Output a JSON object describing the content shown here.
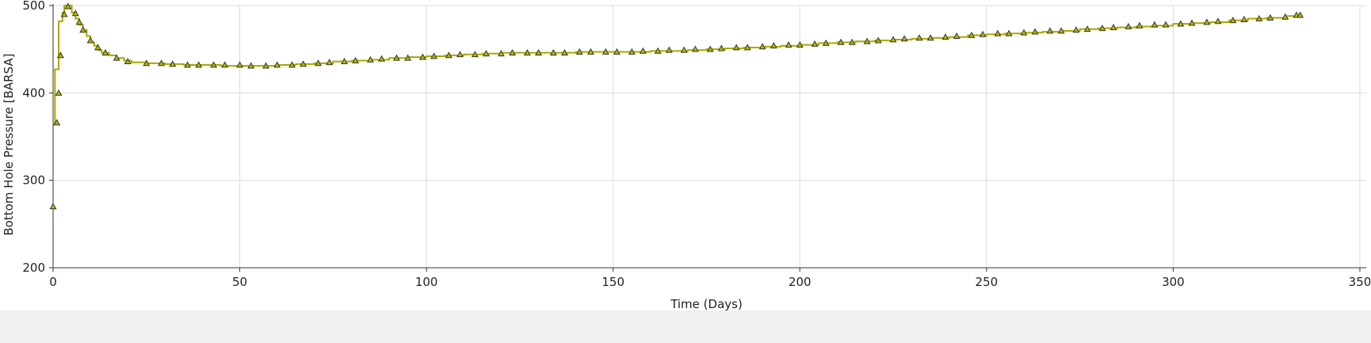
{
  "chart_data": {
    "type": "line",
    "xlabel": "Time (Days)",
    "ylabel": "Bottom Hole Pressure [BARSA]",
    "xlim": [
      0,
      350
    ],
    "ylim": [
      200,
      500
    ],
    "x_ticks": [
      0,
      50,
      100,
      150,
      200,
      250,
      300,
      350
    ],
    "y_ticks": [
      200,
      300,
      400,
      500
    ],
    "grid": true,
    "colors": {
      "line": "#a8a800",
      "marker_fill": "#b8b800",
      "marker_stroke": "#333333"
    },
    "series": [
      {
        "kind": "step-line",
        "points": [
          [
            0,
            365
          ],
          [
            0.5,
            427
          ],
          [
            1,
            427
          ],
          [
            1.5,
            482
          ],
          [
            2,
            482
          ],
          [
            2.5,
            492
          ],
          [
            3,
            500
          ],
          [
            4.5,
            500
          ],
          [
            5,
            492
          ],
          [
            6,
            485
          ],
          [
            7,
            478
          ],
          [
            8,
            472
          ],
          [
            9,
            465
          ],
          [
            10,
            458
          ],
          [
            11,
            454
          ],
          [
            12,
            449
          ],
          [
            13,
            446
          ],
          [
            15,
            443
          ],
          [
            17,
            440
          ],
          [
            19,
            437
          ],
          [
            21,
            435
          ],
          [
            25,
            434
          ],
          [
            30,
            433
          ],
          [
            35,
            432
          ],
          [
            40,
            432
          ],
          [
            45,
            431
          ],
          [
            50,
            431
          ],
          [
            55,
            431
          ],
          [
            60,
            432
          ],
          [
            65,
            433
          ],
          [
            70,
            434
          ],
          [
            75,
            436
          ],
          [
            80,
            437
          ],
          [
            85,
            438
          ],
          [
            90,
            440
          ],
          [
            95,
            441
          ],
          [
            100,
            442
          ],
          [
            105,
            443
          ],
          [
            110,
            444
          ],
          [
            115,
            445
          ],
          [
            120,
            446
          ],
          [
            125,
            446
          ],
          [
            130,
            446
          ],
          [
            135,
            446
          ],
          [
            140,
            447
          ],
          [
            145,
            447
          ],
          [
            150,
            447
          ],
          [
            155,
            447
          ],
          [
            160,
            448
          ],
          [
            165,
            448
          ],
          [
            170,
            449
          ],
          [
            175,
            450
          ],
          [
            180,
            451
          ],
          [
            185,
            452
          ],
          [
            190,
            453
          ],
          [
            195,
            454
          ],
          [
            200,
            455
          ],
          [
            205,
            457
          ],
          [
            210,
            458
          ],
          [
            215,
            459
          ],
          [
            220,
            460
          ],
          [
            225,
            461
          ],
          [
            230,
            462
          ],
          [
            235,
            463
          ],
          [
            240,
            464
          ],
          [
            245,
            466
          ],
          [
            250,
            467
          ],
          [
            255,
            468
          ],
          [
            260,
            469
          ],
          [
            265,
            470
          ],
          [
            270,
            471
          ],
          [
            275,
            473
          ],
          [
            280,
            474
          ],
          [
            285,
            475
          ],
          [
            290,
            476
          ],
          [
            295,
            477
          ],
          [
            300,
            479
          ],
          [
            305,
            480
          ],
          [
            310,
            481
          ],
          [
            315,
            483
          ],
          [
            320,
            485
          ],
          [
            325,
            486
          ],
          [
            330,
            488
          ],
          [
            334,
            489
          ]
        ]
      },
      {
        "kind": "markers",
        "points": [
          [
            0,
            270
          ],
          [
            1,
            366
          ],
          [
            1.5,
            400
          ],
          [
            2,
            443
          ],
          [
            3,
            490
          ],
          [
            4,
            499
          ],
          [
            6,
            491
          ],
          [
            7,
            481
          ],
          [
            8,
            472
          ],
          [
            10,
            460
          ],
          [
            12,
            452
          ],
          [
            14,
            446
          ],
          [
            17,
            440
          ],
          [
            20,
            436
          ],
          [
            25,
            434
          ],
          [
            29,
            434
          ],
          [
            32,
            433
          ],
          [
            36,
            432
          ],
          [
            39,
            432
          ],
          [
            43,
            432
          ],
          [
            46,
            432
          ],
          [
            50,
            432
          ],
          [
            53,
            431
          ],
          [
            57,
            431
          ],
          [
            60,
            432
          ],
          [
            64,
            432
          ],
          [
            67,
            433
          ],
          [
            71,
            434
          ],
          [
            74,
            435
          ],
          [
            78,
            436
          ],
          [
            81,
            437
          ],
          [
            85,
            438
          ],
          [
            88,
            439
          ],
          [
            92,
            440
          ],
          [
            95,
            440
          ],
          [
            99,
            441
          ],
          [
            102,
            442
          ],
          [
            106,
            443
          ],
          [
            109,
            444
          ],
          [
            113,
            444
          ],
          [
            116,
            445
          ],
          [
            120,
            445
          ],
          [
            123,
            446
          ],
          [
            127,
            446
          ],
          [
            130,
            446
          ],
          [
            134,
            446
          ],
          [
            137,
            446
          ],
          [
            141,
            447
          ],
          [
            144,
            447
          ],
          [
            148,
            447
          ],
          [
            151,
            447
          ],
          [
            155,
            447
          ],
          [
            158,
            448
          ],
          [
            162,
            448
          ],
          [
            165,
            449
          ],
          [
            169,
            449
          ],
          [
            172,
            450
          ],
          [
            176,
            450
          ],
          [
            179,
            451
          ],
          [
            183,
            452
          ],
          [
            186,
            452
          ],
          [
            190,
            453
          ],
          [
            193,
            454
          ],
          [
            197,
            455
          ],
          [
            200,
            455
          ],
          [
            204,
            456
          ],
          [
            207,
            457
          ],
          [
            211,
            458
          ],
          [
            214,
            458
          ],
          [
            218,
            459
          ],
          [
            221,
            460
          ],
          [
            225,
            461
          ],
          [
            228,
            462
          ],
          [
            232,
            463
          ],
          [
            235,
            463
          ],
          [
            239,
            464
          ],
          [
            242,
            465
          ],
          [
            246,
            466
          ],
          [
            249,
            467
          ],
          [
            253,
            468
          ],
          [
            256,
            468
          ],
          [
            260,
            469
          ],
          [
            263,
            470
          ],
          [
            267,
            471
          ],
          [
            270,
            471
          ],
          [
            274,
            472
          ],
          [
            277,
            473
          ],
          [
            281,
            474
          ],
          [
            284,
            475
          ],
          [
            288,
            476
          ],
          [
            291,
            477
          ],
          [
            295,
            478
          ],
          [
            298,
            478
          ],
          [
            302,
            479
          ],
          [
            305,
            480
          ],
          [
            309,
            481
          ],
          [
            312,
            482
          ],
          [
            316,
            483
          ],
          [
            319,
            484
          ],
          [
            323,
            485
          ],
          [
            326,
            486
          ],
          [
            330,
            487
          ],
          [
            333,
            489
          ],
          [
            334,
            489
          ]
        ]
      }
    ]
  }
}
